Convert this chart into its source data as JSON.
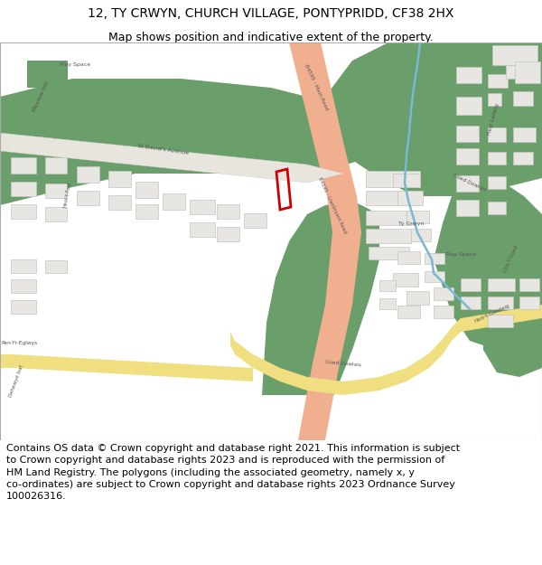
{
  "title_line1": "12, TY CRWYN, CHURCH VILLAGE, PONTYPRIDD, CF38 2HX",
  "title_line2": "Map shows position and indicative extent of the property.",
  "footer_text": "Contains OS data © Crown copyright and database right 2021. This information is subject\nto Crown copyright and database rights 2023 and is reproduced with the permission of\nHM Land Registry. The polygons (including the associated geometry, namely x, y\nco-ordinates) are subject to Crown copyright and database rights 2023 Ordnance Survey\n100026316.",
  "title_fontsize": 10,
  "footer_fontsize": 8,
  "fig_width": 6.0,
  "fig_height": 6.25,
  "map_bg_color": "#f5f4f2",
  "title_area_color": "#ffffff",
  "footer_area_color": "#ffffff",
  "border_color": "#cccccc",
  "green_color": "#6a9e6a",
  "road_main_color": "#f0b090",
  "road_yellow_color": "#f0df80",
  "building_color": "#e8e6e2",
  "building_outline": "#c8c4be",
  "road_outline_color": "#e0d8d0",
  "water_color": "#7ab8d4",
  "highlight_color": "#cc0000",
  "text_color": "#555555",
  "title_color": "#000000"
}
